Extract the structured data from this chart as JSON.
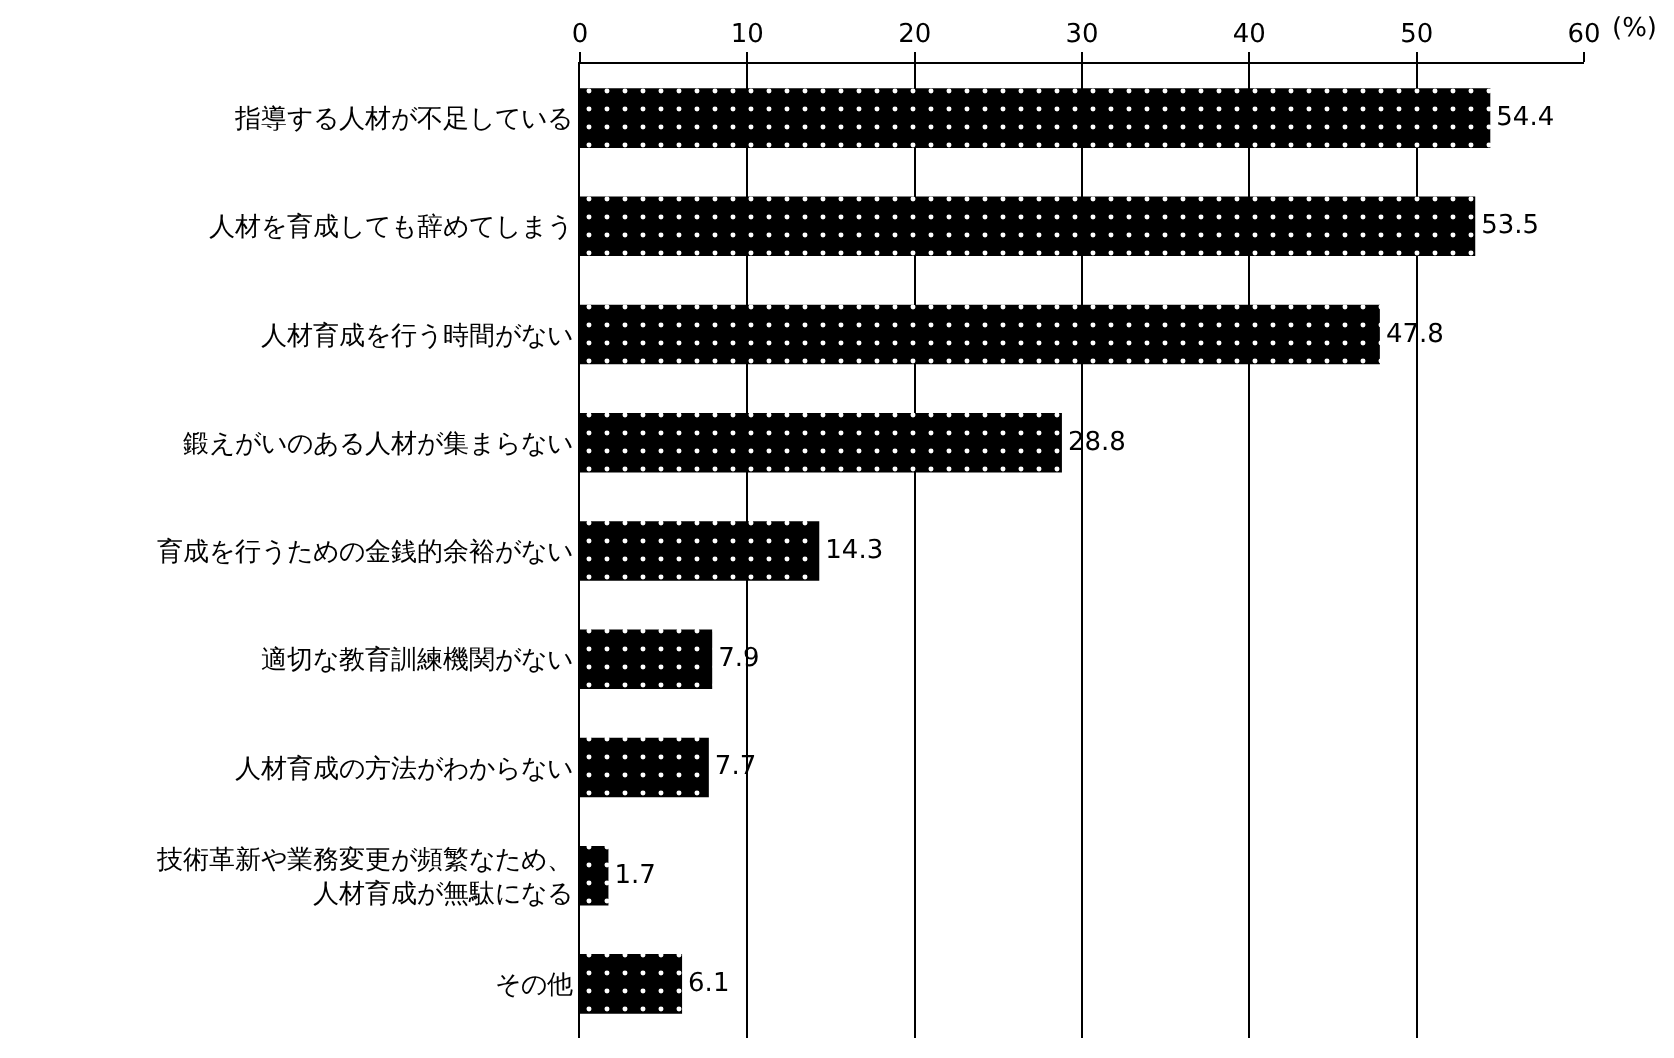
{
  "chart_data": {
    "type": "bar",
    "orientation": "horizontal",
    "xlabel": "(%)",
    "categories": [
      "指導する人材が不足している",
      "人材を育成しても辞めてしまう",
      "人材育成を行う時間がない",
      "鍛えがいのある人材が集まらない",
      "育成を行うための金銭的余裕がない",
      "適切な教育訓練機関がない",
      "人材育成の方法がわからない",
      "技術革新や業務変更が頻繁なため、人材育成が無駄になる",
      "その他"
    ],
    "values": [
      54.4,
      53.5,
      47.8,
      28.8,
      14.3,
      7.9,
      7.7,
      1.7,
      6.1
    ],
    "color": "#000000",
    "xlim": [
      0,
      60
    ],
    "xticks": [
      0,
      10,
      20,
      30,
      40,
      50,
      60
    ],
    "grid": "x",
    "data_labels": true
  }
}
